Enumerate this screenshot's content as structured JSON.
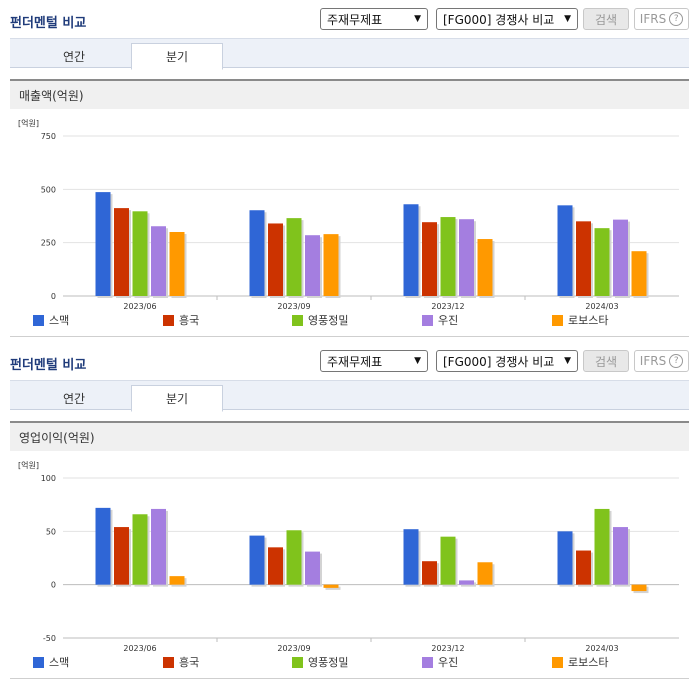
{
  "panels": [
    {
      "title": "펀더멘털 비교",
      "select_statement": "주재무제표",
      "select_peer": "[FG000] 경쟁사 비교",
      "search_label": "검색",
      "ifrs_label": "IFRS",
      "tabs": [
        {
          "label": "연간",
          "active": false
        },
        {
          "label": "분기",
          "active": true
        }
      ],
      "section_title": "매출액(억원)"
    },
    {
      "title": "펀더멘털 비교",
      "select_statement": "주재무제표",
      "select_peer": "[FG000] 경쟁사 비교",
      "search_label": "검색",
      "ifrs_label": "IFRS",
      "tabs": [
        {
          "label": "연간",
          "active": false
        },
        {
          "label": "분기",
          "active": true
        }
      ],
      "section_title": "영업이익(억원)"
    }
  ],
  "chart_data": [
    {
      "type": "bar",
      "unit_label": "[억원]",
      "categories": [
        "2023/06",
        "2023/09",
        "2023/12",
        "2024/03"
      ],
      "ylim": [
        0,
        750
      ],
      "yticks": [
        0,
        250,
        500,
        750
      ],
      "grid": true,
      "legend_position": "bottom",
      "series": [
        {
          "name": "스맥",
          "color": "#2f66d6",
          "values": [
            487,
            402,
            430,
            425
          ]
        },
        {
          "name": "흥국",
          "color": "#cc3300",
          "values": [
            412,
            340,
            346,
            350
          ]
        },
        {
          "name": "영풍정밀",
          "color": "#80c31c",
          "values": [
            397,
            365,
            370,
            318
          ]
        },
        {
          "name": "우진",
          "color": "#a47ee0",
          "values": [
            327,
            285,
            360,
            358
          ]
        },
        {
          "name": "로보스타",
          "color": "#ff9900",
          "values": [
            300,
            290,
            267,
            210
          ]
        }
      ]
    },
    {
      "type": "bar",
      "unit_label": "[억원]",
      "categories": [
        "2023/06",
        "2023/09",
        "2023/12",
        "2024/03"
      ],
      "ylim": [
        -50,
        100
      ],
      "yticks": [
        -50,
        0,
        50,
        100
      ],
      "grid": true,
      "legend_position": "bottom",
      "series": [
        {
          "name": "스맥",
          "color": "#2f66d6",
          "values": [
            72,
            46,
            52,
            50
          ]
        },
        {
          "name": "흥국",
          "color": "#cc3300",
          "values": [
            54,
            35,
            22,
            32
          ]
        },
        {
          "name": "영풍정밀",
          "color": "#80c31c",
          "values": [
            66,
            51,
            45,
            71
          ]
        },
        {
          "name": "우진",
          "color": "#a47ee0",
          "values": [
            71,
            31,
            4,
            54
          ]
        },
        {
          "name": "로보스타",
          "color": "#ff9900",
          "values": [
            8,
            -3,
            21,
            -6
          ]
        }
      ]
    }
  ]
}
